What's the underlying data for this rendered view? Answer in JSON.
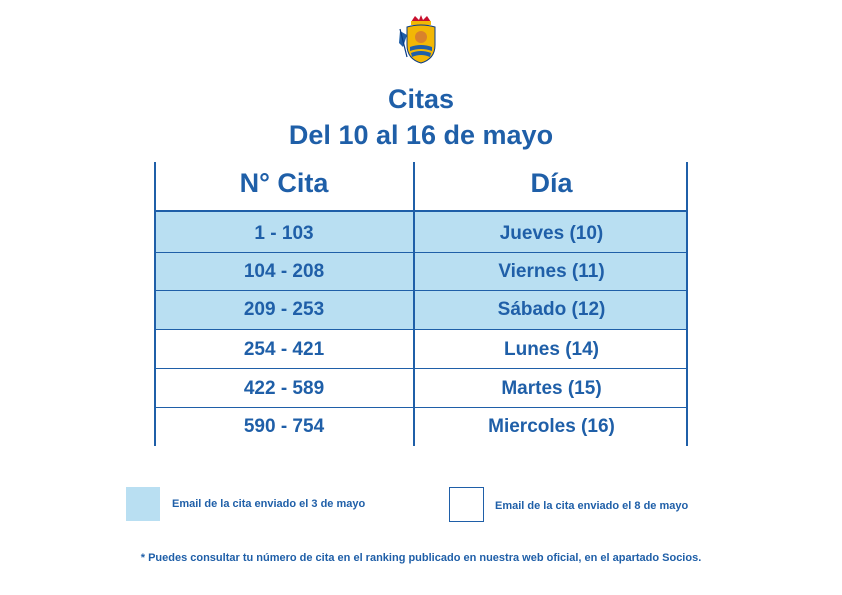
{
  "logo": {
    "icon": "club-crest-icon"
  },
  "title": {
    "line1": "Citas",
    "line2": "Del 10 al 16 de mayo"
  },
  "table": {
    "headers": [
      "N° Cita",
      "Día"
    ],
    "rows": [
      {
        "cita": "1 - 103",
        "dia": "Jueves (10)",
        "highlight": true
      },
      {
        "cita": "104 - 208",
        "dia": "Viernes (11)",
        "highlight": true
      },
      {
        "cita": "209 - 253",
        "dia": "Sábado (12)",
        "highlight": true
      },
      {
        "cita": "254 - 421",
        "dia": "Lunes (14)",
        "highlight": false
      },
      {
        "cita": "422 - 589",
        "dia": "Martes (15)",
        "highlight": false
      },
      {
        "cita": "590 - 754",
        "dia": "Miercoles (16)",
        "highlight": false
      }
    ]
  },
  "legend": {
    "blue_label": "Email de la cita enviado el 3 de mayo",
    "white_label": "Email de la cita enviado el 8 de mayo"
  },
  "footnote": "* Puedes consultar tu número de cita en el ranking publicado en nuestra web oficial, en el apartado Socios.",
  "colors": {
    "primary": "#1f5fa8",
    "highlight": "#b9dff2"
  }
}
